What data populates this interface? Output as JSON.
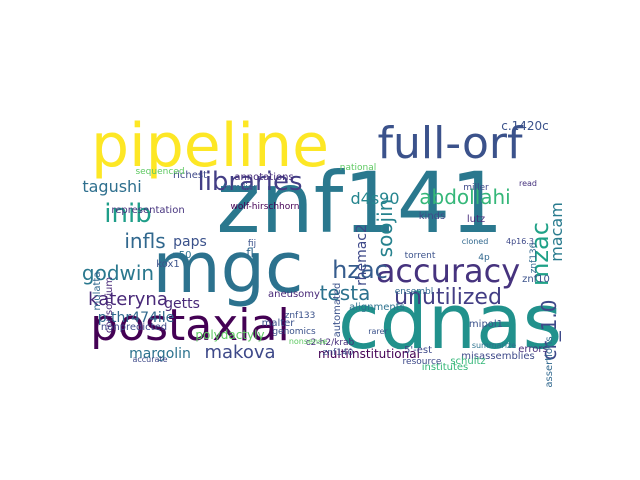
{
  "colors": {
    "background": "#ffffff",
    "palette": [
      "#440154",
      "#482878",
      "#3e4989",
      "#31688e",
      "#26828e",
      "#1f9e89",
      "#35b779",
      "#6ece58",
      "#b5de2b",
      "#fde725"
    ]
  },
  "words": [
    {
      "text": "znf141",
      "color": "#2a788e"
    },
    {
      "text": "cdnas",
      "color": "#21918c"
    },
    {
      "text": "mgc",
      "color": "#2c728e"
    },
    {
      "text": "pipeline",
      "color": "#fde725"
    },
    {
      "text": "full-orf",
      "color": "#3b528b"
    },
    {
      "text": "postaxial",
      "color": "#440154"
    },
    {
      "text": "accuracy",
      "color": "#46337e"
    },
    {
      "text": "libraries",
      "color": "#433e85"
    },
    {
      "text": "hzac",
      "color": "#365c8d"
    },
    {
      "text": "unutilized",
      "color": "#433e85"
    },
    {
      "text": "inib",
      "color": "#1f9e89"
    },
    {
      "text": "infls",
      "color": "#31688e"
    },
    {
      "text": "godwin",
      "color": "#2a788e"
    },
    {
      "text": "kateryna",
      "color": "#482878"
    },
    {
      "text": "abdollahi",
      "color": "#35b779"
    },
    {
      "text": "testa",
      "color": "#2c728e"
    },
    {
      "text": "makova",
      "color": "#3e4989"
    },
    {
      "text": "tagushi",
      "color": "#2e6f8e"
    },
    {
      "text": "mzac",
      "color": "#1fa187"
    },
    {
      "text": "soojin",
      "color": "#26828e"
    },
    {
      "text": "d4s90",
      "color": "#25858e"
    },
    {
      "text": "cr_1.0",
      "color": "#3e4989"
    },
    {
      "text": "getts",
      "color": "#482878"
    },
    {
      "text": "margolin",
      "color": "#2c728e"
    },
    {
      "text": "p.thr474ile",
      "color": "#31688e"
    },
    {
      "text": "macam",
      "color": "#297b8e"
    },
    {
      "text": "rhemac2",
      "color": "#3e4989"
    },
    {
      "text": "paps",
      "color": "#3b528b"
    },
    {
      "text": "c.1420c",
      "color": "#3b528b"
    },
    {
      "text": "fl",
      "color": "#31688e"
    },
    {
      "text": "representation",
      "color": "#46337e"
    },
    {
      "text": "nonpredicted",
      "color": "#3e4989"
    },
    {
      "text": "polydactyly",
      "color": "#5ec962"
    },
    {
      "text": "consortium",
      "color": "#482878"
    },
    {
      "text": "multiinstitutional",
      "color": "#440154"
    },
    {
      "text": "misassemblies",
      "color": "#3e4989"
    },
    {
      "text": "alignments",
      "color": "#2c728e"
    },
    {
      "text": "automated",
      "color": "#3b528b"
    },
    {
      "text": "kinds",
      "color": "#3e4989"
    },
    {
      "text": "schultz",
      "color": "#35b779"
    },
    {
      "text": "mipol1",
      "color": "#3b528b"
    },
    {
      "text": "errors",
      "color": "#472d7b"
    },
    {
      "text": "znf10",
      "color": "#3b528b"
    },
    {
      "text": "znf140",
      "color": "#3e4989"
    },
    {
      "text": "znf133",
      "color": "#3b528b"
    },
    {
      "text": "5'-est",
      "color": "#3e4989"
    },
    {
      "text": "assertions",
      "color": "#31688e"
    },
    {
      "text": "aneusomy",
      "color": "#482878"
    },
    {
      "text": "malter",
      "color": "#3b528b"
    },
    {
      "text": "lutz",
      "color": "#472d7b"
    },
    {
      "text": "kox1",
      "color": "#3b528b"
    },
    {
      "text": "n50",
      "color": "#2c728e"
    },
    {
      "text": "fij",
      "color": "#3b528b"
    },
    {
      "text": "richest",
      "color": "#3e4989"
    },
    {
      "text": "annotations",
      "color": "#472d7b"
    },
    {
      "text": "mulatta",
      "color": "#31688e"
    },
    {
      "text": "institutes",
      "color": "#35b779"
    },
    {
      "text": "c2-h2/krab",
      "color": "#472d7b"
    },
    {
      "text": "wolf-hirschhorn",
      "color": "#440154"
    },
    {
      "text": "znf136",
      "color": "#31688e"
    },
    {
      "text": "miller",
      "color": "#3e4989"
    },
    {
      "text": "4p",
      "color": "#31688e"
    },
    {
      "text": "read",
      "color": "#46337e"
    },
    {
      "text": "ensembl",
      "color": "#31688e"
    },
    {
      "text": "sequenced",
      "color": "#5ec962"
    },
    {
      "text": "familiar",
      "color": "#31688e"
    },
    {
      "text": "national",
      "color": "#5ec962"
    },
    {
      "text": "torrent",
      "color": "#3b528b"
    },
    {
      "text": "genomics",
      "color": "#3b528b"
    },
    {
      "text": "resource",
      "color": "#3e4989"
    },
    {
      "text": "accurate",
      "color": "#3e4989"
    },
    {
      "text": "rarer",
      "color": "#3b528b"
    },
    {
      "text": "cloned",
      "color": "#31688e"
    },
    {
      "text": "nonsense",
      "color": "#5ec962"
    },
    {
      "text": "4p16.3",
      "color": "#3e4989"
    },
    {
      "text": "summarize",
      "color": "#2c728e"
    }
  ]
}
